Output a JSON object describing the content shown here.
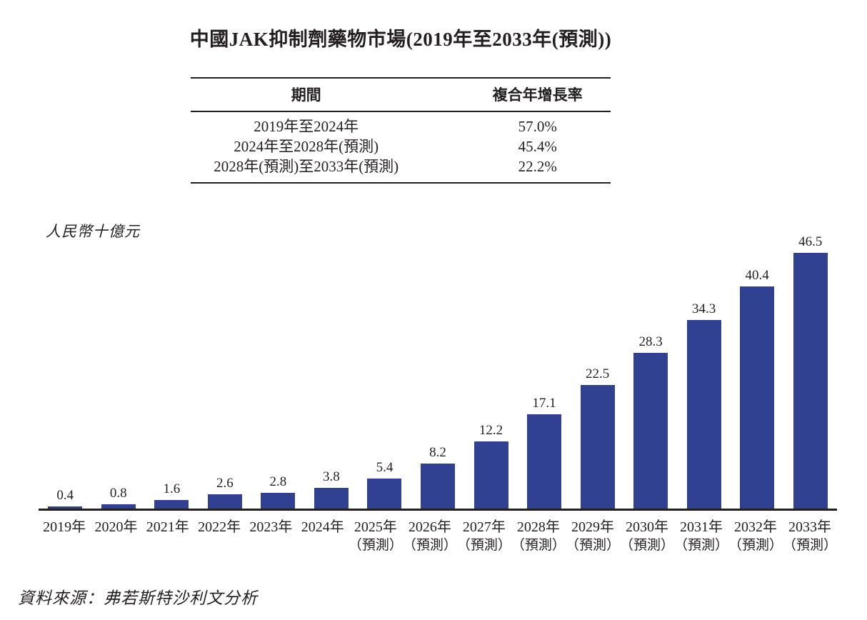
{
  "title": "中國JAK抑制劑藥物市場(2019年至2033年(預測))",
  "cagr_table": {
    "headers": {
      "period": "期間",
      "cagr": "複合年增長率"
    },
    "rows": [
      {
        "period": "2019年至2024年",
        "cagr": "57.0%"
      },
      {
        "period": "2024年至2028年(預測)",
        "cagr": "45.4%"
      },
      {
        "period": "2028年(預測)至2033年(預測)",
        "cagr": "22.2%"
      }
    ]
  },
  "chart_data": {
    "type": "bar",
    "title": "中國JAK抑制劑藥物市場(2019年至2033年(預測))",
    "ylabel": "人民幣十億元",
    "categories": [
      "2019年",
      "2020年",
      "2021年",
      "2022年",
      "2023年",
      "2024年",
      "2025年",
      "2026年",
      "2027年",
      "2028年",
      "2029年",
      "2030年",
      "2031年",
      "2032年",
      "2033年"
    ],
    "category_notes": [
      "",
      "",
      "",
      "",
      "",
      "",
      "（預測）",
      "（預測）",
      "（預測）",
      "（預測）",
      "（預測）",
      "（預測）",
      "（預測）",
      "（預測）",
      "（預測）"
    ],
    "values": [
      0.4,
      0.8,
      1.6,
      2.6,
      2.8,
      3.8,
      5.4,
      8.2,
      12.2,
      17.1,
      22.5,
      28.3,
      34.3,
      40.4,
      46.5
    ],
    "ylim": [
      0,
      50
    ],
    "grid": false,
    "legend": false,
    "data_labels": true,
    "bar_color": "#2F4190",
    "axis_color": "#231F20",
    "text_color": "#231F20"
  },
  "source_note": "資料來源：弗若斯特沙利文分析"
}
